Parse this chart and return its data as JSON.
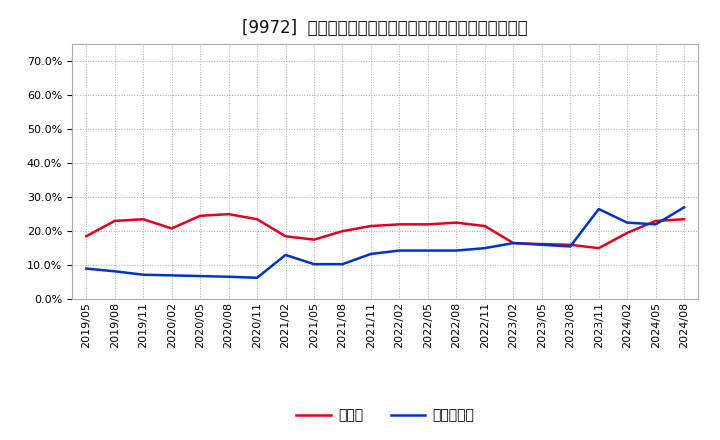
{
  "title": "[9972]  現預金、有利子負債の総資産に対する比率の推移",
  "ylim": [
    0.0,
    0.75
  ],
  "yticks": [
    0.0,
    0.1,
    0.2,
    0.3,
    0.4,
    0.5,
    0.6,
    0.7
  ],
  "x_labels": [
    "2019/05",
    "2019/08",
    "2019/11",
    "2020/02",
    "2020/05",
    "2020/08",
    "2020/11",
    "2021/02",
    "2021/05",
    "2021/08",
    "2021/11",
    "2022/02",
    "2022/05",
    "2022/08",
    "2022/11",
    "2023/02",
    "2023/05",
    "2023/08",
    "2023/11",
    "2024/02",
    "2024/05",
    "2024/08"
  ],
  "cash_values": [
    0.185,
    0.23,
    0.235,
    0.208,
    0.245,
    0.25,
    0.235,
    0.185,
    0.175,
    0.2,
    0.215,
    0.22,
    0.22,
    0.225,
    0.215,
    0.165,
    0.162,
    0.16,
    0.15,
    0.195,
    0.23,
    0.235
  ],
  "debt_values": [
    0.09,
    0.082,
    0.072,
    0.07,
    0.068,
    0.066,
    0.063,
    0.13,
    0.103,
    0.103,
    0.133,
    0.143,
    0.143,
    0.143,
    0.15,
    0.165,
    0.16,
    0.155,
    0.265,
    0.225,
    0.22,
    0.27
  ],
  "cash_color": "#e8001c",
  "debt_color": "#0033cc",
  "legend_cash": "現預金",
  "legend_debt": "有利子負債",
  "background_color": "#ffffff",
  "plot_bg_color": "#ffffff",
  "grid_color": "#aaaaaa",
  "title_fontsize": 12,
  "legend_fontsize": 10,
  "tick_fontsize": 8
}
